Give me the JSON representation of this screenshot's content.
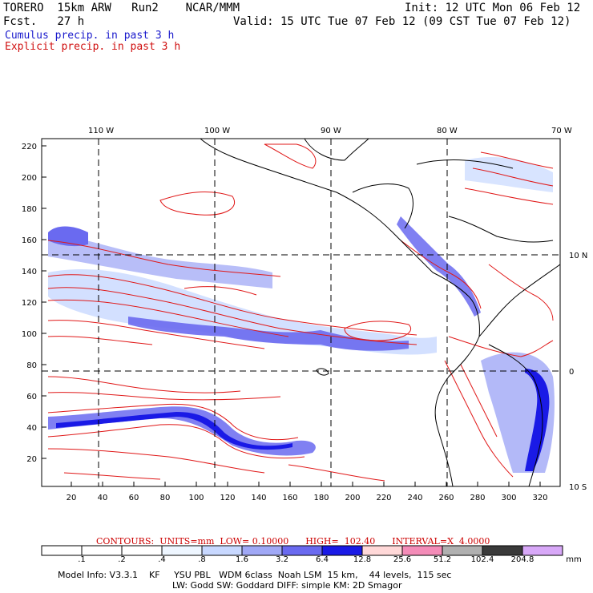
{
  "header": {
    "model": "TORERO  15km ARW   Run2    NCAR/MMM",
    "init": "Init: 12 UTC Mon 06 Feb 12",
    "fcst": "Fcst.   27 h",
    "valid": "Valid: 15 UTC Tue 07 Feb 12 (09 CST Tue 07 Feb 12)",
    "cumulus": "Cumulus precip. in past 3 h",
    "explicit": "Explicit precip. in past 3 h"
  },
  "map": {
    "top_lon_labels": [
      "110 W",
      "100 W",
      "90 W",
      "80 W",
      "70 W"
    ],
    "right_lat_labels": [
      "10 N",
      "0",
      "10 S"
    ],
    "y_ticks": [
      "220",
      "200",
      "180",
      "160",
      "140",
      "120",
      "100",
      "80",
      "60",
      "40",
      "20"
    ],
    "x_ticks": [
      "20",
      "40",
      "60",
      "80",
      "100",
      "120",
      "140",
      "160",
      "180",
      "200",
      "220",
      "240",
      "260",
      "280",
      "300",
      "320"
    ],
    "colors": {
      "explicit_contour": "#e01818",
      "coast": "#000000",
      "grid": "#000000"
    }
  },
  "colorbar": {
    "contours_text": "CONTOURS:  UNITS=mm  LOW= 0.10000      HIGH=  102.40      INTERVAL=X  4.0000",
    "labels": [
      ".1",
      ".2",
      ".4",
      ".8",
      "1.6",
      "3.2",
      "6.4",
      "12.8",
      "25.6",
      "51.2",
      "102.4",
      "204.8"
    ],
    "units": "mm",
    "swatches": [
      "#ffffff",
      "#ffffff",
      "#ffffff",
      "#eef6ff",
      "#c8d8ff",
      "#a0a8f6",
      "#6a6af0",
      "#1a1ae6",
      "#ffd8d8",
      "#f48cb8",
      "#b0b0b0",
      "#3a3a3a",
      "#d8a8f8"
    ]
  },
  "footer": {
    "line1": "Model Info: V3.3.1    KF     YSU PBL   WDM 6class  Noah LSM  15 km,    44 levels,  115 sec",
    "line2": "LW: Godd SW: Goddard DIFF: simple KM: 2D Smagor"
  }
}
